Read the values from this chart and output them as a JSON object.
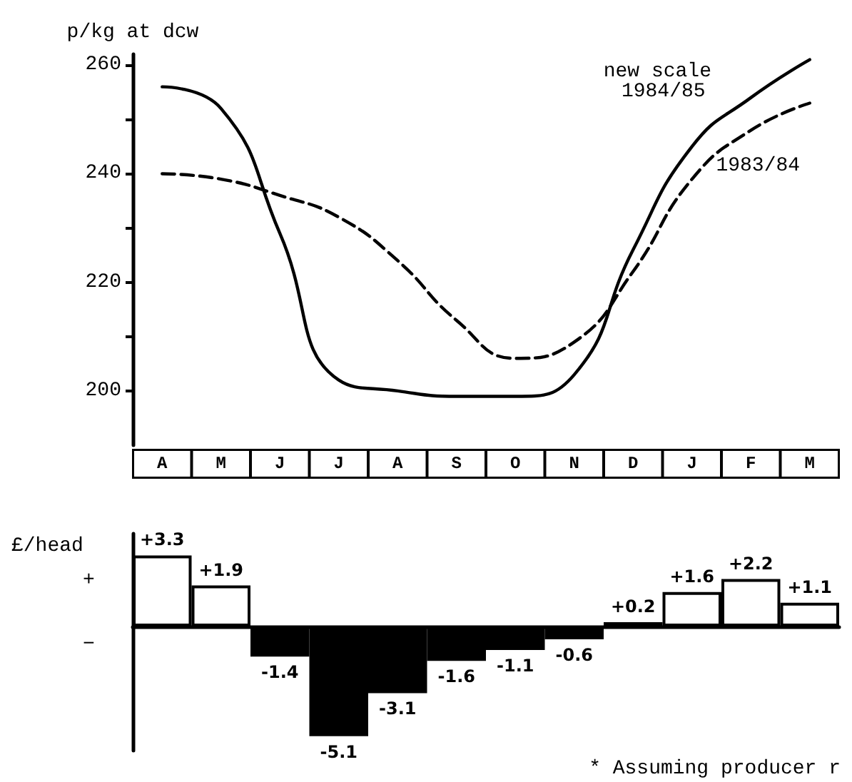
{
  "chart_data": [
    {
      "type": "line",
      "ylabel": "p/kg at dcw",
      "categories": [
        "A",
        "M",
        "J",
        "J",
        "A",
        "S",
        "O",
        "N",
        "D",
        "J",
        "F",
        "M"
      ],
      "ylim": [
        190,
        262
      ],
      "yticks": [
        200,
        {
          "value": 210,
          "label": null
        },
        220,
        {
          "value": 230,
          "label": null
        },
        240,
        {
          "value": 250,
          "label": null
        },
        260
      ],
      "grid": false,
      "legend": false,
      "series": [
        {
          "name": "new scale 1984/85",
          "color": "#000000",
          "line_style": "solid",
          "values": [
            256,
            252,
            229,
            202,
            200,
            199,
            199,
            203,
            226,
            245,
            254,
            261
          ]
        },
        {
          "name": "1983/84",
          "color": "#000000",
          "line_style": "dashed",
          "values": [
            240,
            239,
            236,
            232,
            224,
            213,
            206,
            209,
            222,
            239,
            248,
            253
          ]
        }
      ]
    },
    {
      "type": "bar",
      "ylabel": "£/head",
      "categories": [
        "A",
        "M",
        "J",
        "J",
        "A",
        "S",
        "O",
        "N",
        "D",
        "J",
        "F",
        "M"
      ],
      "tick_labels": false,
      "grid": false,
      "legend": false,
      "values": [
        3.3,
        1.9,
        -1.4,
        -5.1,
        -3.1,
        -1.6,
        -1.1,
        -0.6,
        0.2,
        1.6,
        2.2,
        1.1
      ],
      "colors": [
        "#ffffff",
        "#ffffff",
        "#000000",
        "#000000",
        "#000000",
        "#000000",
        "#000000",
        "#000000",
        "#ffffff",
        "#ffffff",
        "#ffffff",
        "#ffffff"
      ],
      "value_labels": [
        "+3.3",
        "+1.9",
        "-1.4",
        "-5.1",
        "-3.1",
        "-1.6",
        "-1.1",
        "-0.6",
        "+0.2",
        "+1.6",
        "+2.2",
        "+1.1"
      ],
      "annotations": [
        "+",
        "−",
        "* Assuming producer r"
      ]
    }
  ]
}
